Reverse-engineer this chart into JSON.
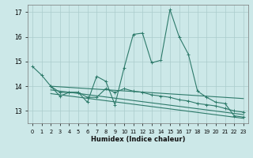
{
  "xlabel": "Humidex (Indice chaleur)",
  "bg_color": "#cce8e8",
  "grid_color": "#aacccc",
  "line_color": "#2d7a6a",
  "xlim": [
    -0.5,
    23.5
  ],
  "ylim": [
    12.5,
    17.3
  ],
  "yticks": [
    13,
    14,
    15,
    16,
    17
  ],
  "ytick_labels": [
    "13",
    "14",
    "15",
    "16",
    "17"
  ],
  "xticks": [
    0,
    1,
    2,
    3,
    4,
    5,
    6,
    7,
    8,
    9,
    10,
    11,
    12,
    13,
    14,
    15,
    16,
    17,
    18,
    19,
    20,
    21,
    22,
    23
  ],
  "line1_x": [
    0,
    1,
    2,
    3,
    4,
    5,
    6,
    7,
    8,
    9,
    10,
    11,
    12,
    13,
    14,
    15,
    16,
    17,
    18,
    19,
    20,
    21,
    22,
    23
  ],
  "line1_y": [
    14.8,
    14.45,
    14.0,
    13.6,
    13.75,
    13.75,
    13.35,
    14.4,
    14.2,
    13.25,
    14.75,
    16.1,
    16.15,
    14.95,
    15.05,
    17.1,
    16.0,
    15.3,
    13.8,
    13.55,
    13.35,
    13.3,
    12.8,
    12.75
  ],
  "line2_x": [
    2,
    3,
    4,
    5,
    6,
    7,
    8,
    9,
    10,
    11,
    12,
    13,
    14,
    15,
    16,
    17,
    18,
    19,
    20,
    21,
    22,
    23
  ],
  "line2_y": [
    14.0,
    13.75,
    13.75,
    13.75,
    13.55,
    13.55,
    13.9,
    13.75,
    13.9,
    13.8,
    13.75,
    13.65,
    13.6,
    13.55,
    13.45,
    13.4,
    13.3,
    13.25,
    13.2,
    13.1,
    13.0,
    12.95
  ],
  "line3_x": [
    2,
    23
  ],
  "line3_y": [
    14.0,
    13.5
  ],
  "line4_x": [
    2,
    23
  ],
  "line4_y": [
    13.85,
    12.85
  ],
  "line5_x": [
    2,
    23
  ],
  "line5_y": [
    13.7,
    12.7
  ]
}
